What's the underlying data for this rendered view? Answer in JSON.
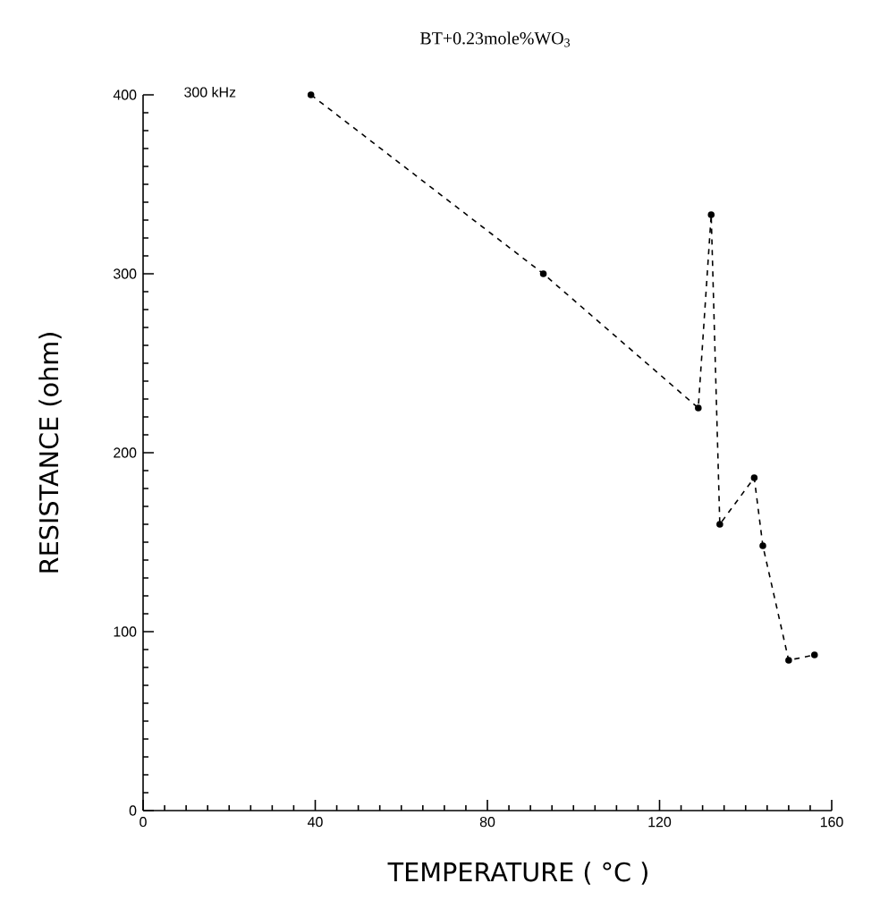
{
  "chart_data": {
    "type": "line",
    "title": "BT+0.23mole%WO$_{3}$",
    "xlabel": "TEMPERATURE  (  °C  )",
    "ylabel": "RESISTANCE  (ohm)",
    "annotations": [
      "300  kHz"
    ],
    "x": [
      39,
      93,
      129,
      132,
      134,
      142,
      144,
      150,
      156
    ],
    "series": [
      {
        "color": "#000000",
        "values": [
          400,
          300,
          225,
          333,
          160,
          186,
          148,
          84,
          87
        ]
      }
    ],
    "xlim": [
      0,
      160
    ],
    "xticks": [
      0,
      40,
      80,
      120,
      160
    ],
    "ylim": [
      0,
      400
    ],
    "yticks": [
      0,
      100,
      200,
      300,
      400
    ],
    "grid": false,
    "marker": "circle",
    "line_style": "dashed"
  }
}
